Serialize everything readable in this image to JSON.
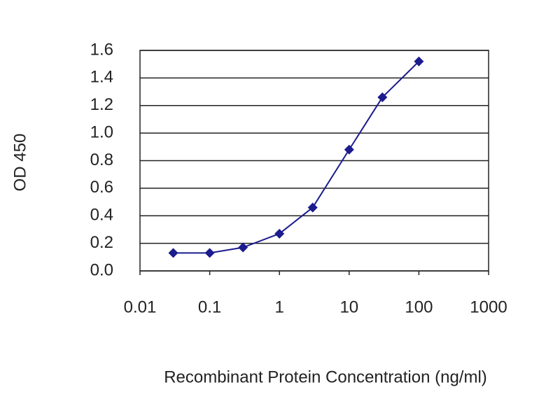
{
  "chart_data": {
    "type": "line",
    "xlabel": "Recombinant Protein Concentration (ng/ml)",
    "ylabel": "OD 450",
    "x": [
      0.03,
      0.1,
      0.3,
      1,
      3,
      10,
      30,
      100
    ],
    "values": [
      0.13,
      0.13,
      0.17,
      0.27,
      0.46,
      0.88,
      1.26,
      1.52
    ],
    "color": "#1c1c8e",
    "xscale": "log",
    "xlim": [
      0.01,
      1000
    ],
    "xticks": [
      0.01,
      0.1,
      1,
      10,
      100,
      1000
    ],
    "ylim": [
      0,
      1.6
    ],
    "yticks": [
      {
        "value": 0,
        "label": "0.0"
      },
      0.2,
      0.4,
      0.6,
      0.8,
      {
        "value": 1,
        "label": "1.0"
      },
      1.2,
      1.4,
      1.6
    ],
    "grid": true
  }
}
